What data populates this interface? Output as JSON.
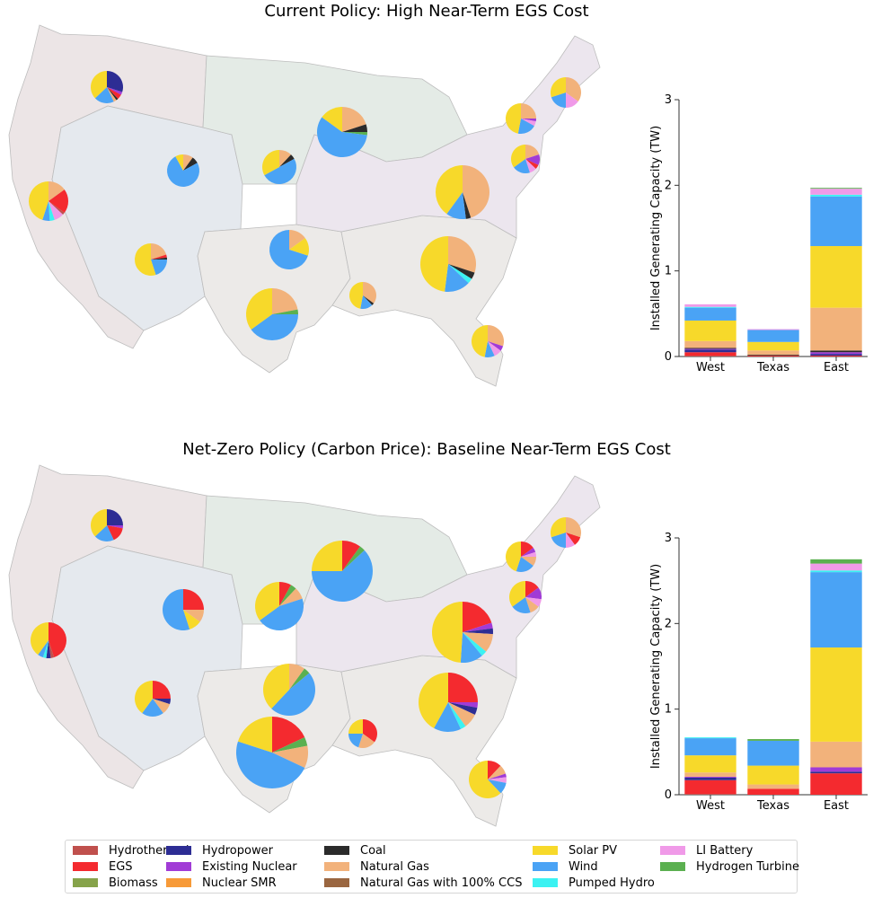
{
  "colors": {
    "Hydrothermal": "#c0504d",
    "EGS": "#f42a2f",
    "Biomass": "#86a34a",
    "Hydropower": "#2d2d94",
    "Existing Nuclear": "#a13bd6",
    "Nuclear SMR": "#f79a38",
    "Coal": "#2b2b2b",
    "Natural Gas": "#f2b27b",
    "Natural Gas with 100% CCS": "#9a6640",
    "Solar PV": "#f7d92a",
    "Wind": "#4aa3f5",
    "Pumped Hydro": "#3bf2f2",
    "LI Battery": "#f09ae8",
    "Hydrogen Turbine": "#5bb050"
  },
  "legend": {
    "items": [
      "Hydrothermal",
      "EGS",
      "Biomass",
      "Hydropower",
      "Existing Nuclear",
      "Nuclear SMR",
      "Coal",
      "Natural Gas",
      "Natural Gas with 100% CCS",
      "Solar PV",
      "Wind",
      "Pumped Hydro",
      "LI Battery",
      "Hydrogen Turbine"
    ]
  },
  "map_style": {
    "west_fill": "#ece5e6",
    "interior_fill": "#e5e9ee",
    "north_fill": "#e4ebe6",
    "east_fill": "#ece6ee",
    "south_fill": "#eceae8",
    "border": "#bdbdbd"
  },
  "chart_data": [
    {
      "type": "bar",
      "title": "Current Policy: High Near-Term EGS Cost",
      "stacked": true,
      "categories": [
        "West",
        "Texas",
        "East"
      ],
      "ylabel": "Installed Generating Capacity (TW)",
      "ylim": [
        0,
        3
      ],
      "yticks": [
        0,
        1,
        2,
        3
      ],
      "series": [
        {
          "name": "Hydrothermal",
          "values": [
            0.01,
            0.0,
            0.0
          ]
        },
        {
          "name": "EGS",
          "values": [
            0.04,
            0.01,
            0.01
          ]
        },
        {
          "name": "Biomass",
          "values": [
            0.0,
            0.0,
            0.0
          ]
        },
        {
          "name": "Hydropower",
          "values": [
            0.03,
            0.0,
            0.02
          ]
        },
        {
          "name": "Existing Nuclear",
          "values": [
            0.01,
            0.0,
            0.02
          ]
        },
        {
          "name": "Nuclear SMR",
          "values": [
            0.0,
            0.0,
            0.0
          ]
        },
        {
          "name": "Coal",
          "values": [
            0.01,
            0.01,
            0.02
          ]
        },
        {
          "name": "Natural Gas",
          "values": [
            0.08,
            0.05,
            0.5
          ]
        },
        {
          "name": "Natural Gas with 100% CCS",
          "values": [
            0.0,
            0.0,
            0.0
          ]
        },
        {
          "name": "Solar PV",
          "values": [
            0.24,
            0.1,
            0.72
          ]
        },
        {
          "name": "Wind",
          "values": [
            0.15,
            0.14,
            0.58
          ]
        },
        {
          "name": "Pumped Hydro",
          "values": [
            0.01,
            0.0,
            0.02
          ]
        },
        {
          "name": "LI Battery",
          "values": [
            0.03,
            0.01,
            0.07
          ]
        },
        {
          "name": "Hydrogen Turbine",
          "values": [
            0.0,
            0.0,
            0.01
          ]
        }
      ],
      "maps": {
        "pies": [
          {
            "cx": 119,
            "cy": 97,
            "r": 18,
            "values": {
              "Hydropower": 30,
              "Existing Nuclear": 3,
              "EGS": 5,
              "Coal": 2,
              "Natural Gas": 3,
              "Wind": 20,
              "Solar PV": 37
            }
          },
          {
            "cx": 54,
            "cy": 224,
            "r": 22,
            "values": {
              "Natural Gas": 15,
              "EGS": 20,
              "Hydrothermal": 2,
              "LI Battery": 8,
              "Pumped Hydro": 4,
              "Wind": 6,
              "Solar PV": 45
            }
          },
          {
            "cx": 204,
            "cy": 190,
            "r": 18,
            "values": {
              "Natural Gas": 10,
              "Coal": 7,
              "Wind": 75,
              "Solar PV": 8
            }
          },
          {
            "cx": 311,
            "cy": 186,
            "r": 19,
            "values": {
              "Natural Gas": 12,
              "Coal": 5,
              "Wind": 50,
              "Solar PV": 33
            }
          },
          {
            "cx": 381,
            "cy": 147,
            "r": 28,
            "values": {
              "Natural Gas": 20,
              "Coal": 5,
              "Hydrogen Turbine": 2,
              "Wind": 58,
              "Solar PV": 15
            }
          },
          {
            "cx": 515,
            "cy": 214,
            "r": 30,
            "values": {
              "Natural Gas": 45,
              "Coal": 3,
              "Wind": 12,
              "Solar PV": 40
            }
          },
          {
            "cx": 168,
            "cy": 289,
            "r": 18,
            "values": {
              "Natural Gas": 20,
              "EGS": 3,
              "Coal": 2,
              "Wind": 20,
              "Solar PV": 55
            }
          },
          {
            "cx": 322,
            "cy": 278,
            "r": 22,
            "values": {
              "Natural Gas": 15,
              "Solar PV": 15,
              "Wind": 70
            }
          },
          {
            "cx": 303,
            "cy": 350,
            "r": 29,
            "values": {
              "Natural Gas": 22,
              "Hydrogen Turbine": 3,
              "Wind": 40,
              "Solar PV": 35
            }
          },
          {
            "cx": 404,
            "cy": 329,
            "r": 15,
            "values": {
              "Natural Gas": 35,
              "Coal": 3,
              "Wind": 15,
              "Solar PV": 47
            }
          },
          {
            "cx": 499,
            "cy": 294,
            "r": 31,
            "values": {
              "Natural Gas": 30,
              "Coal": 4,
              "Pumped Hydro": 3,
              "Wind": 15,
              "Solar PV": 48
            }
          },
          {
            "cx": 580,
            "cy": 132,
            "r": 17,
            "values": {
              "Natural Gas": 25,
              "Existing Nuclear": 3,
              "LI Battery": 5,
              "Wind": 20,
              "Solar PV": 47
            }
          },
          {
            "cx": 585,
            "cy": 177,
            "r": 16,
            "values": {
              "Natural Gas": 20,
              "Existing Nuclear": 12,
              "EGS": 5,
              "LI Battery": 8,
              "Wind": 20,
              "Solar PV": 35
            }
          },
          {
            "cx": 630,
            "cy": 103,
            "r": 17,
            "values": {
              "Natural Gas": 35,
              "LI Battery": 15,
              "Wind": 20,
              "Solar PV": 30
            }
          },
          {
            "cx": 543,
            "cy": 380,
            "r": 18,
            "values": {
              "Natural Gas": 30,
              "Existing Nuclear": 5,
              "LI Battery": 8,
              "Wind": 10,
              "Solar PV": 47
            }
          }
        ]
      }
    },
    {
      "type": "bar",
      "title": "Net-Zero Policy (Carbon Price): Baseline Near-Term EGS Cost",
      "stacked": true,
      "categories": [
        "West",
        "Texas",
        "East"
      ],
      "ylabel": "Installed Generating Capacity (TW)",
      "ylim": [
        0,
        3
      ],
      "yticks": [
        0,
        1,
        2,
        3
      ],
      "series": [
        {
          "name": "Hydrothermal",
          "values": [
            0.01,
            0.0,
            0.0
          ]
        },
        {
          "name": "EGS",
          "values": [
            0.16,
            0.07,
            0.25
          ]
        },
        {
          "name": "Biomass",
          "values": [
            0.0,
            0.0,
            0.0
          ]
        },
        {
          "name": "Hydropower",
          "values": [
            0.03,
            0.0,
            0.02
          ]
        },
        {
          "name": "Existing Nuclear",
          "values": [
            0.01,
            0.0,
            0.05
          ]
        },
        {
          "name": "Nuclear SMR",
          "values": [
            0.0,
            0.0,
            0.0
          ]
        },
        {
          "name": "Coal",
          "values": [
            0.0,
            0.0,
            0.0
          ]
        },
        {
          "name": "Natural Gas",
          "values": [
            0.05,
            0.05,
            0.3
          ]
        },
        {
          "name": "Natural Gas with 100% CCS",
          "values": [
            0.0,
            0.0,
            0.0
          ]
        },
        {
          "name": "Solar PV",
          "values": [
            0.2,
            0.22,
            1.1
          ]
        },
        {
          "name": "Wind",
          "values": [
            0.2,
            0.29,
            0.88
          ]
        },
        {
          "name": "Pumped Hydro",
          "values": [
            0.01,
            0.0,
            0.02
          ]
        },
        {
          "name": "LI Battery",
          "values": [
            0.0,
            0.0,
            0.08
          ]
        },
        {
          "name": "Hydrogen Turbine",
          "values": [
            0.0,
            0.02,
            0.05
          ]
        }
      ],
      "maps": {
        "pies": [
          {
            "cx": 119,
            "cy": 585,
            "r": 18,
            "values": {
              "Hydropower": 25,
              "Existing Nuclear": 3,
              "EGS": 15,
              "Wind": 20,
              "Solar PV": 37
            }
          },
          {
            "cx": 54,
            "cy": 713,
            "r": 20,
            "values": {
              "EGS": 45,
              "Hydrothermal": 3,
              "Hydropower": 4,
              "Pumped Hydro": 3,
              "Wind": 5,
              "Solar PV": 40
            }
          },
          {
            "cx": 204,
            "cy": 679,
            "r": 23,
            "values": {
              "EGS": 25,
              "Natural Gas": 10,
              "Solar PV": 10,
              "Wind": 55
            }
          },
          {
            "cx": 311,
            "cy": 675,
            "r": 27,
            "values": {
              "EGS": 8,
              "Hydrogen Turbine": 4,
              "Natural Gas": 8,
              "Wind": 45,
              "Solar PV": 35
            }
          },
          {
            "cx": 381,
            "cy": 636,
            "r": 34,
            "values": {
              "EGS": 10,
              "Hydrogen Turbine": 3,
              "Wind": 62,
              "Solar PV": 25
            }
          },
          {
            "cx": 515,
            "cy": 704,
            "r": 34,
            "values": {
              "EGS": 20,
              "Existing Nuclear": 3,
              "Hydropower": 3,
              "Natural Gas": 10,
              "Pumped Hydro": 3,
              "Wind": 12,
              "Solar PV": 49
            }
          },
          {
            "cx": 170,
            "cy": 778,
            "r": 20,
            "values": {
              "EGS": 25,
              "Hydropower": 5,
              "Natural Gas": 10,
              "Wind": 20,
              "Solar PV": 40
            }
          },
          {
            "cx": 322,
            "cy": 768,
            "r": 29,
            "values": {
              "Natural Gas": 10,
              "Hydrogen Turbine": 4,
              "Wind": 48,
              "Solar PV": 38
            }
          },
          {
            "cx": 303,
            "cy": 838,
            "r": 40,
            "values": {
              "EGS": 18,
              "Hydrogen Turbine": 4,
              "Natural Gas": 10,
              "Wind": 48,
              "Solar PV": 20
            }
          },
          {
            "cx": 404,
            "cy": 817,
            "r": 16,
            "values": {
              "EGS": 35,
              "Natural Gas": 20,
              "Wind": 20,
              "Solar PV": 25
            }
          },
          {
            "cx": 499,
            "cy": 782,
            "r": 33,
            "values": {
              "EGS": 25,
              "Existing Nuclear": 3,
              "Hydropower": 4,
              "Natural Gas": 8,
              "Pumped Hydro": 3,
              "Wind": 15,
              "Solar PV": 42
            }
          },
          {
            "cx": 580,
            "cy": 620,
            "r": 17,
            "values": {
              "EGS": 15,
              "Existing Nuclear": 5,
              "LI Battery": 5,
              "Natural Gas": 10,
              "Wind": 20,
              "Solar PV": 45
            }
          },
          {
            "cx": 585,
            "cy": 665,
            "r": 18,
            "values": {
              "EGS": 15,
              "Existing Nuclear": 12,
              "LI Battery": 8,
              "Natural Gas": 10,
              "Wind": 20,
              "Solar PV": 35
            }
          },
          {
            "cx": 630,
            "cy": 593,
            "r": 17,
            "values": {
              "Natural Gas": 30,
              "EGS": 10,
              "LI Battery": 10,
              "Wind": 20,
              "Solar PV": 30
            }
          },
          {
            "cx": 543,
            "cy": 868,
            "r": 21,
            "values": {
              "EGS": 12,
              "Natural Gas": 8,
              "Existing Nuclear": 3,
              "LI Battery": 5,
              "Wind": 10,
              "Solar PV": 62
            }
          }
        ]
      }
    }
  ]
}
